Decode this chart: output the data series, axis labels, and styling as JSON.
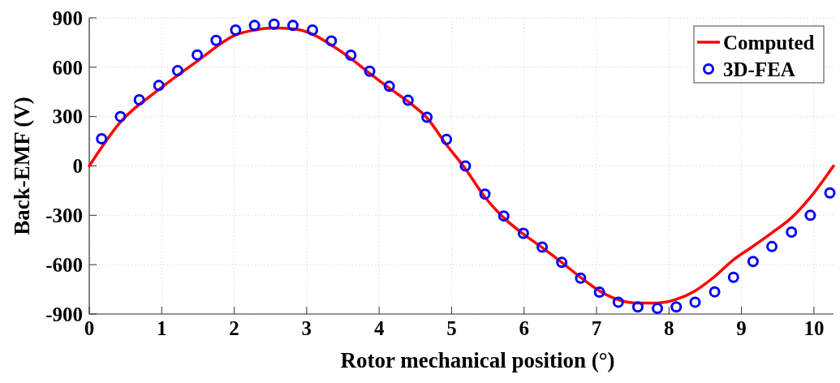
{
  "chart_data": {
    "type": "line",
    "xlabel": "Rotor mechanical position (°)",
    "ylabel": "Back-EMF (V)",
    "xlim": [
      0,
      10.27
    ],
    "xticks": [
      0,
      1,
      2,
      3,
      4,
      5,
      6,
      7,
      8,
      9,
      10
    ],
    "ylim": [
      -900,
      900
    ],
    "yticks": [
      -900,
      -600,
      -300,
      0,
      300,
      600,
      900
    ],
    "grid": true,
    "legend": "top right",
    "series": [
      {
        "name": "Computed",
        "color": "#ff0000",
        "marker": "none",
        "line_style": "solid",
        "x": [
          0,
          0.43,
          0.96,
          1.49,
          2.02,
          2.28,
          2.55,
          2.81,
          3.08,
          3.34,
          3.61,
          3.87,
          4.14,
          4.4,
          4.66,
          4.93,
          5.19,
          5.46,
          5.72,
          5.99,
          6.25,
          6.52,
          6.78,
          7.04,
          7.3,
          7.57,
          7.84,
          8.1,
          8.36,
          8.63,
          8.89,
          9.16,
          9.42,
          9.69,
          9.95,
          10.27
        ],
        "values": [
          0,
          267,
          464,
          637,
          796,
          826,
          838,
          833,
          801,
          735,
          653,
          563,
          473,
          391,
          292,
          128,
          -17,
          -190,
          -315,
          -414,
          -496,
          -586,
          -677,
          -759,
          -813,
          -833,
          -833,
          -811,
          -759,
          -672,
          -570,
          -488,
          -406,
          -315,
          -191,
          0
        ]
      },
      {
        "name": "3D-FEA",
        "type": "scatter",
        "color": "#0000ff",
        "marker": "circle",
        "x": [
          0.17,
          0.43,
          0.69,
          0.96,
          1.22,
          1.49,
          1.75,
          2.02,
          2.28,
          2.55,
          2.81,
          3.08,
          3.34,
          3.61,
          3.87,
          4.14,
          4.4,
          4.66,
          4.93,
          5.19,
          5.46,
          5.72,
          5.99,
          6.25,
          6.52,
          6.78,
          7.04,
          7.3,
          7.57,
          7.84,
          8.1,
          8.36,
          8.63,
          8.89,
          9.16,
          9.42,
          9.69,
          9.95,
          10.22
        ],
        "values": [
          165,
          300,
          402,
          489,
          579,
          675,
          763,
          826,
          854,
          862,
          854,
          826,
          760,
          673,
          576,
          484,
          399,
          296,
          161,
          0,
          -171,
          -304,
          -409,
          -493,
          -586,
          -682,
          -767,
          -828,
          -857,
          -866,
          -857,
          -828,
          -765,
          -677,
          -581,
          -490,
          -402,
          -300,
          -164
        ]
      }
    ]
  }
}
